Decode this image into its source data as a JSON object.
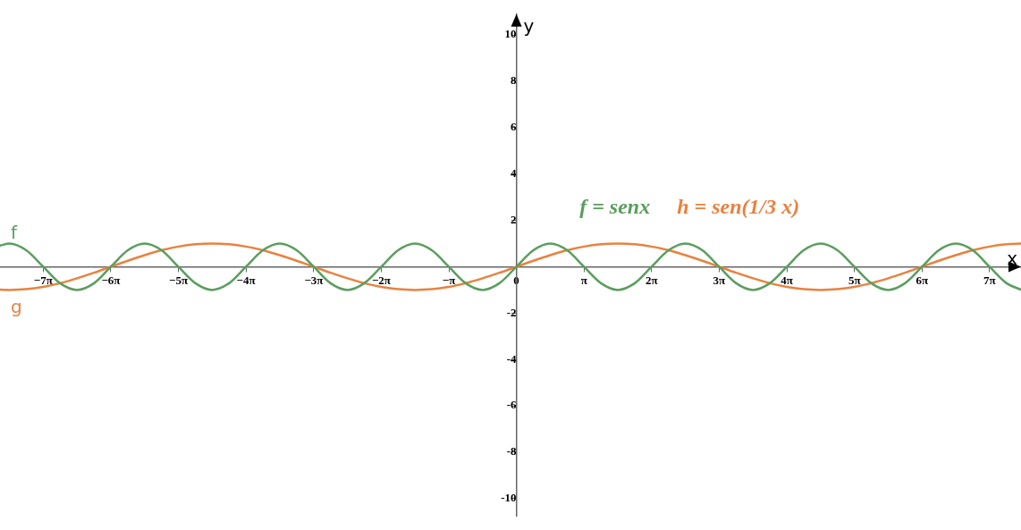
{
  "chart_data": {
    "type": "line",
    "xlabel": "x",
    "ylabel": "y",
    "annotations": [
      "f = senx",
      "h = sen(1/3 x)"
    ],
    "x": [
      -24.0,
      -23.56,
      -22.78,
      -21.99,
      -21.21,
      -20.42,
      -19.63,
      -18.85,
      -18.06,
      -17.28,
      -16.49,
      -15.71,
      -14.92,
      -14.14,
      -13.35,
      -12.57,
      -11.78,
      -11.0,
      -10.21,
      -9.42,
      -8.64,
      -7.85,
      -7.07,
      -6.28,
      -5.5,
      -4.71,
      -3.93,
      -3.14,
      -2.36,
      -1.57,
      -0.79,
      0,
      0.79,
      1.57,
      2.36,
      3.14,
      3.93,
      4.71,
      5.5,
      6.28,
      7.07,
      7.85,
      8.64,
      9.42,
      10.21,
      11.0,
      11.78,
      12.57,
      13.35,
      14.14,
      14.92,
      15.71,
      16.49,
      17.28,
      18.06,
      18.85,
      19.63,
      20.42,
      21.21,
      21.99,
      22.78,
      23.45
    ],
    "series": [
      {
        "name": "f",
        "color": "#5a9e5e",
        "values": [
          0.91,
          1,
          0.71,
          0,
          -0.71,
          -1,
          -0.71,
          0,
          0.71,
          1,
          0.71,
          0,
          -0.71,
          -1,
          -0.71,
          0,
          0.71,
          1,
          0.71,
          0,
          -0.71,
          -1,
          -0.71,
          0,
          0.71,
          1,
          0.71,
          0,
          -0.71,
          -1,
          -0.71,
          0,
          0.71,
          1,
          0.71,
          0,
          -0.71,
          -1,
          -0.71,
          0,
          0.71,
          1,
          0.71,
          0,
          -0.71,
          -1,
          -0.71,
          0,
          0.71,
          1,
          0.71,
          0,
          -0.71,
          -1,
          -0.71,
          0,
          0.71,
          1,
          0.71,
          0,
          -0.71,
          -0.99
        ]
      },
      {
        "name": "g",
        "color": "#e8823f",
        "values": [
          -0.99,
          -1,
          -0.97,
          -0.87,
          -0.71,
          -0.5,
          -0.26,
          0,
          0.26,
          0.5,
          0.71,
          0.87,
          0.97,
          1,
          0.97,
          0.87,
          0.71,
          0.5,
          0.26,
          0,
          -0.26,
          -0.5,
          -0.71,
          -0.87,
          -0.97,
          -1,
          -0.97,
          -0.87,
          -0.71,
          -0.5,
          -0.26,
          0,
          0.26,
          0.5,
          0.71,
          0.87,
          0.97,
          1,
          0.97,
          0.87,
          0.71,
          0.5,
          0.26,
          0,
          -0.26,
          -0.5,
          -0.71,
          -0.87,
          -0.97,
          -1,
          -0.97,
          -0.87,
          -0.71,
          -0.5,
          -0.26,
          0,
          0.26,
          0.5,
          0.71,
          0.87,
          0.97,
          1.0
        ]
      }
    ],
    "xlim": [
      -24.0,
      23.45
    ],
    "ylim": [
      -10.75,
      10.9
    ],
    "xticks": [
      {
        "value": -21.99,
        "label": "−7π"
      },
      {
        "value": -18.85,
        "label": "−6π"
      },
      {
        "value": -15.71,
        "label": "−5π"
      },
      {
        "value": -12.57,
        "label": "−4π"
      },
      {
        "value": -9.42,
        "label": "−3π"
      },
      {
        "value": -6.28,
        "label": "−2π"
      },
      {
        "value": -3.14,
        "label": "−π"
      },
      {
        "value": 0,
        "label": "0"
      },
      {
        "value": 3.14,
        "label": "π"
      },
      {
        "value": 6.28,
        "label": "2π"
      },
      {
        "value": 9.42,
        "label": "3π"
      },
      {
        "value": 12.57,
        "label": "4π"
      },
      {
        "value": 15.71,
        "label": "5π"
      },
      {
        "value": 18.85,
        "label": "6π"
      },
      {
        "value": 21.99,
        "label": "7π"
      }
    ],
    "yticks": [
      -10,
      -8,
      -6,
      -4,
      -2,
      {
        "value": 0,
        "label": null
      },
      2,
      4,
      6,
      8,
      10
    ],
    "grid": false,
    "legend": false,
    "marker": "none",
    "line_style": "solid"
  }
}
